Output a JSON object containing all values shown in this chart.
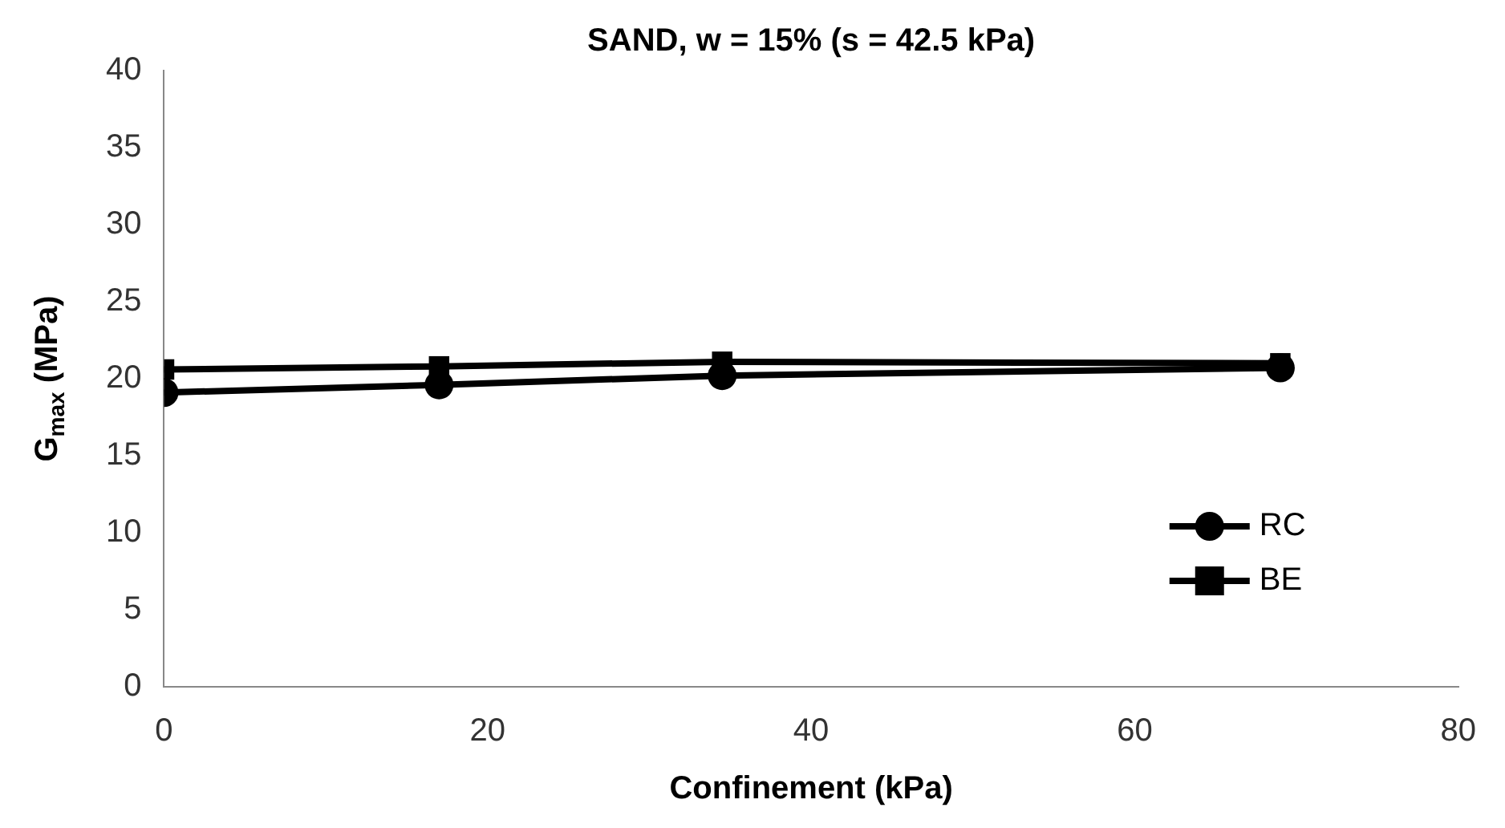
{
  "chart_data": {
    "type": "line",
    "title": "SAND, w = 15% (s = 42.5 kPa)",
    "xlabel": "Confinement (kPa)",
    "ylabel": "G$_{max}$ (MPa)",
    "x": [
      0,
      17,
      34.5,
      69
    ],
    "series": [
      {
        "name": "RC",
        "color": "#000000",
        "marker": "circle",
        "values": [
          19.1,
          19.6,
          20.2,
          20.7
        ]
      },
      {
        "name": "BE",
        "color": "#000000",
        "marker": "square",
        "values": [
          20.6,
          20.8,
          21.1,
          21.0
        ]
      }
    ],
    "xlim": [
      0,
      80
    ],
    "xticks": [
      0,
      20,
      40,
      60,
      80
    ],
    "ylim": [
      0,
      40
    ],
    "yticks": [
      0,
      5,
      10,
      15,
      20,
      25,
      30,
      35,
      40
    ],
    "grid": false,
    "legend": "bottom right",
    "line_style": "solid"
  }
}
